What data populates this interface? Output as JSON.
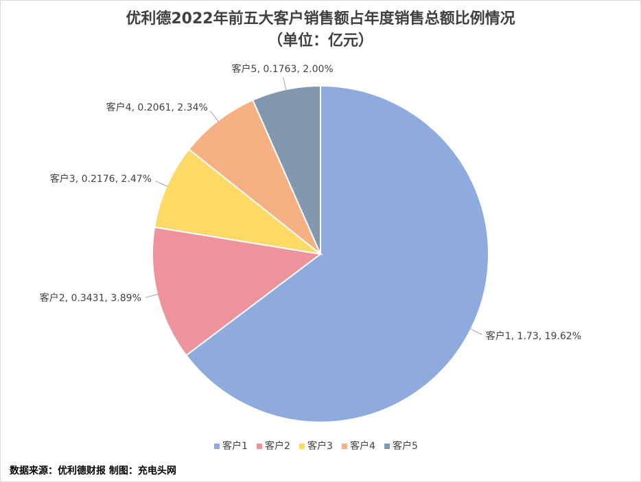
{
  "chart_data": {
    "type": "pie",
    "title": "优利德2022年前五大客户销售额占年度销售总额比例情况",
    "subtitle": "（单位：亿元）",
    "categories": [
      "客户1",
      "客户2",
      "客户3",
      "客户4",
      "客户5"
    ],
    "values": [
      1.73,
      0.3431,
      0.2176,
      0.2061,
      0.1763
    ],
    "value_labels": [
      "客户1, 1.73, 19.62%",
      "客户2, 0.3431, 3.89%",
      "客户3, 0.2176, 2.47%",
      "客户4, 0.2061, 2.34%",
      "客户5, 0.1763, 2.00%"
    ],
    "colors": [
      "#8faadc",
      "#ee939c",
      "#fdd966",
      "#f5b183",
      "#8497b0"
    ],
    "legend": "bottom",
    "source": "数据来源：优利德财报  制图：充电头网"
  }
}
